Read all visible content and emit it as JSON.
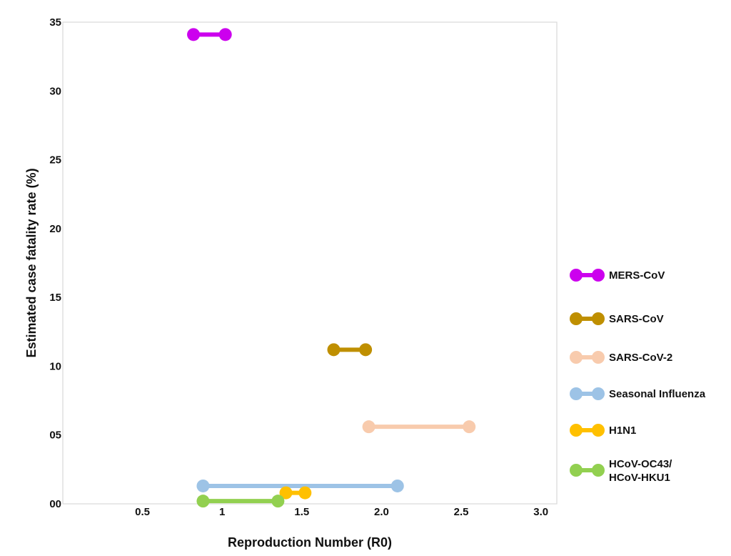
{
  "chart_data": {
    "type": "dumbbell",
    "xlabel": "Reproduction Number (R0)",
    "ylabel": "Estimated case fatality rate (%)",
    "xlim": [
      0,
      3.1
    ],
    "ylim": [
      0,
      35
    ],
    "xticks": [
      {
        "value": 0.5,
        "label": "0.5"
      },
      {
        "value": 1.0,
        "label": "1"
      },
      {
        "value": 1.5,
        "label": "1.5"
      },
      {
        "value": 2.0,
        "label": "2.0"
      },
      {
        "value": 2.5,
        "label": "2.5"
      },
      {
        "value": 3.0,
        "label": "3.0"
      }
    ],
    "yticks": [
      {
        "value": 0,
        "label": "00"
      },
      {
        "value": 5,
        "label": "05"
      },
      {
        "value": 10,
        "label": "10"
      },
      {
        "value": 15,
        "label": "15"
      },
      {
        "value": 20,
        "label": "20"
      },
      {
        "value": 25,
        "label": "25"
      },
      {
        "value": 30,
        "label": "30"
      },
      {
        "value": 35,
        "label": "35"
      }
    ],
    "grid": false,
    "legend_position": "right",
    "series": [
      {
        "name": "MERS-CoV",
        "color": "#cc00ee",
        "x_range": [
          0.82,
          1.02
        ],
        "y": 34.1
      },
      {
        "name": "SARS-CoV",
        "color": "#bf8f00",
        "x_range": [
          1.7,
          1.9
        ],
        "y": 11.2
      },
      {
        "name": "SARS-CoV-2",
        "color": "#f8cbad",
        "x_range": [
          1.92,
          2.55
        ],
        "y": 5.6
      },
      {
        "name": "Seasonal Influenza",
        "color": "#9dc3e6",
        "x_range": [
          0.88,
          2.1
        ],
        "y": 1.3
      },
      {
        "name": "H1N1",
        "color": "#ffc000",
        "x_range": [
          1.4,
          1.52
        ],
        "y": 0.8
      },
      {
        "name": "HCoV-OC43/\nHCoV-HKU1",
        "color": "#92d050",
        "x_range": [
          0.88,
          1.35
        ],
        "y": 0.2
      }
    ]
  }
}
